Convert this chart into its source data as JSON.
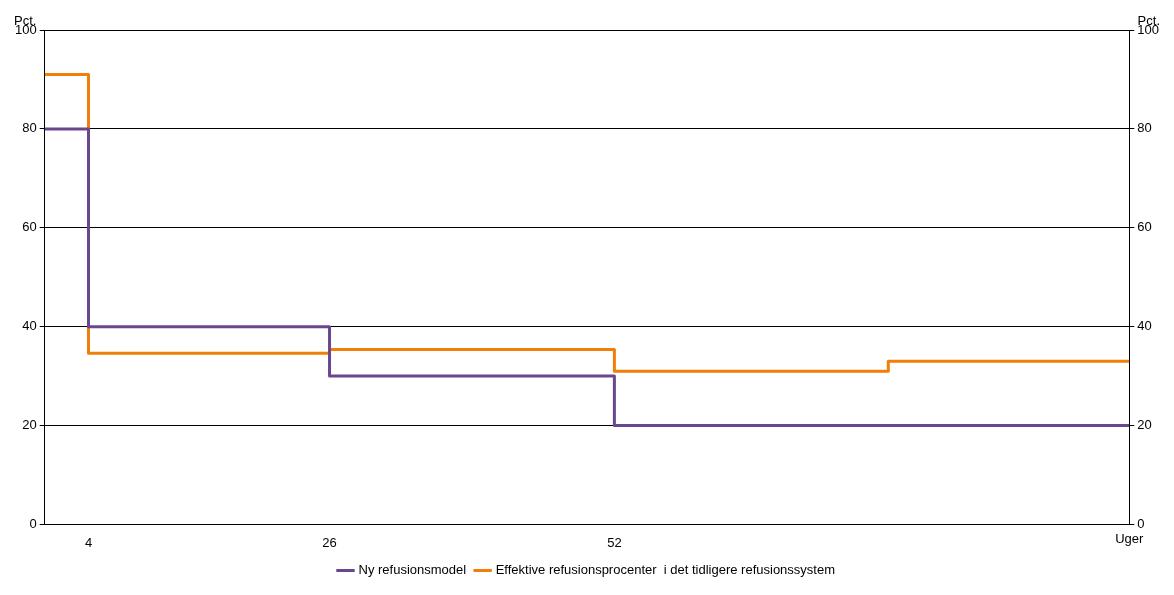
{
  "chart_data": {
    "type": "step",
    "ylabel": "Pct.",
    "y2label": "Pct.",
    "xlabel": "Uger",
    "xlim": [
      0,
      99
    ],
    "xticks": [
      4,
      26,
      52
    ],
    "ylim": [
      0,
      100
    ],
    "yticks": [
      0,
      20,
      40,
      60,
      80,
      100
    ],
    "y2lim": [
      0,
      100
    ],
    "y2ticks": [
      0,
      20,
      40,
      60,
      80,
      100
    ],
    "grid": "y",
    "legend": "bottom",
    "line_style": "solid",
    "marker": "none",
    "series": [
      {
        "name": "Ny refusionsmodel",
        "color": "#68478d",
        "x": [
          0,
          4,
          26,
          52,
          99
        ],
        "values": [
          80,
          40,
          30,
          20,
          20
        ]
      },
      {
        "name": "Effektive refusionsprocenter  i det tidligere refusionssystem",
        "color": "#f07f09",
        "x": [
          0,
          4,
          26,
          52,
          77,
          99
        ],
        "values": [
          91,
          34.6,
          35.4,
          31,
          33,
          33
        ]
      }
    ]
  }
}
